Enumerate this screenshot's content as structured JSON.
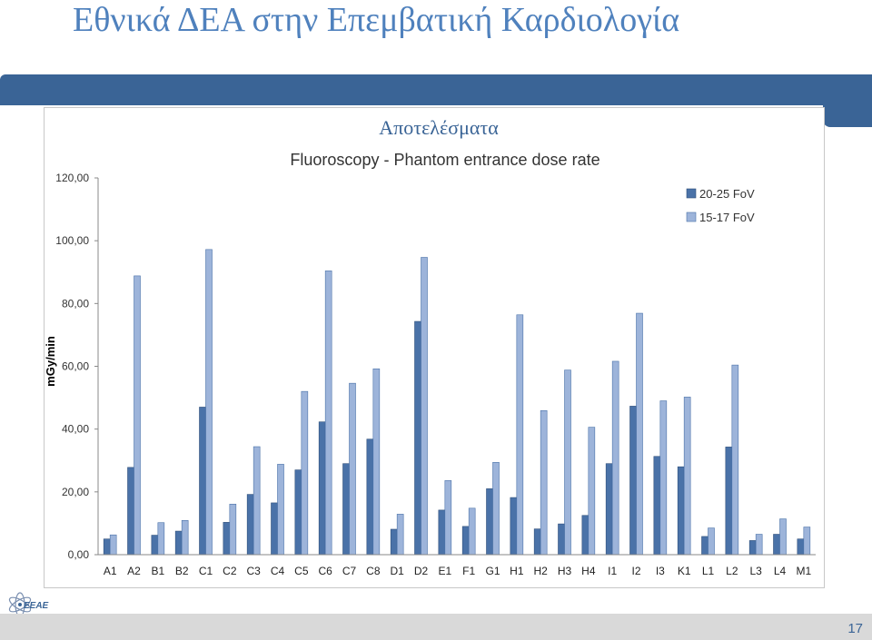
{
  "slide": {
    "title": "Εθνικά ΔΕΑ στην Επεμβατική Καρδιολογία",
    "page_number": "17",
    "logo_text": "ΕΕΑΕ"
  },
  "colors": {
    "accent": "#3a6496",
    "series1": "#4a72a8",
    "series2": "#9db4da",
    "bottom_bar": "#d9d9d9"
  },
  "chart_data": {
    "type": "bar",
    "title": "Αποτελέσματα",
    "subtitle": "Fluoroscopy - Phantom entrance dose rate",
    "ylabel": "mGy/min",
    "xlabel": "",
    "ylim": [
      0,
      120
    ],
    "yticks": [
      "0,00",
      "20,00",
      "40,00",
      "60,00",
      "80,00",
      "100,00",
      "120,00"
    ],
    "legend_position": "top-right",
    "categories": [
      "A1",
      "A2",
      "B1",
      "B2",
      "C1",
      "C2",
      "C3",
      "C4",
      "C5",
      "C6",
      "C7",
      "C8",
      "D1",
      "D2",
      "E1",
      "F1",
      "G1",
      "H1",
      "H2",
      "H3",
      "H4",
      "I1",
      "I2",
      "I3",
      "K1",
      "L1",
      "L2",
      "L3",
      "L4",
      "M1"
    ],
    "series": [
      {
        "name": "20-25 FoV",
        "values": [
          5.0,
          27.8,
          6.2,
          7.5,
          47.0,
          10.3,
          19.2,
          16.5,
          27.0,
          42.3,
          29.0,
          36.8,
          8.1,
          74.3,
          14.2,
          9.0,
          21.0,
          18.2,
          8.2,
          9.8,
          12.5,
          29.0,
          47.3,
          31.3,
          28.0,
          5.8,
          34.3,
          4.5,
          6.5,
          5.0
        ]
      },
      {
        "name": "15-17 FoV",
        "values": [
          6.3,
          88.8,
          10.2,
          10.9,
          97.2,
          16.1,
          34.4,
          28.8,
          52.0,
          90.4,
          54.6,
          59.2,
          12.9,
          94.7,
          23.6,
          14.8,
          29.4,
          76.4,
          45.9,
          58.8,
          40.6,
          61.6,
          76.9,
          49.0,
          50.2,
          8.5,
          60.4,
          6.5,
          11.4,
          8.8
        ]
      }
    ]
  }
}
